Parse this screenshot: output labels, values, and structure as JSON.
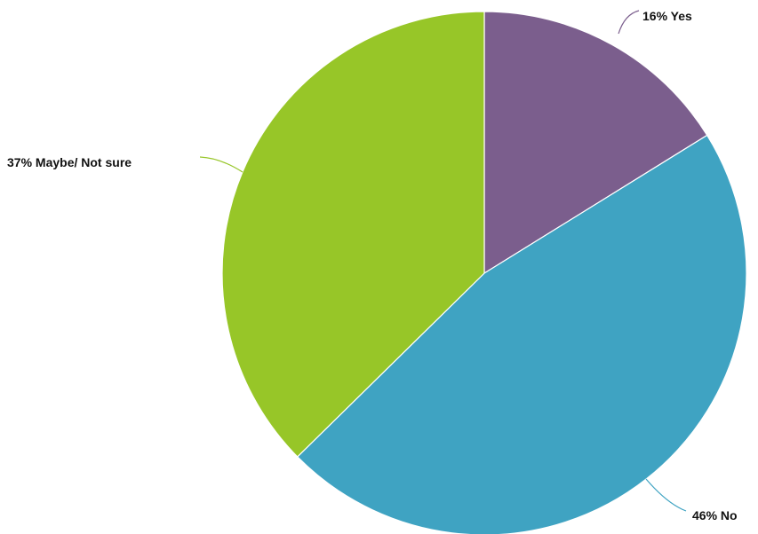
{
  "chart_data": {
    "type": "pie",
    "categories": [
      "Yes",
      "No",
      "Maybe/ Not sure"
    ],
    "values": [
      16,
      46,
      37
    ],
    "labels": [
      "16% Yes",
      "46% No",
      "37% Maybe/ Not sure"
    ],
    "colors": [
      "#7b5e8d",
      "#3fa3c2",
      "#97c628"
    ],
    "legend": "none",
    "start_angle": "12 o'clock",
    "direction": "clockwise"
  }
}
